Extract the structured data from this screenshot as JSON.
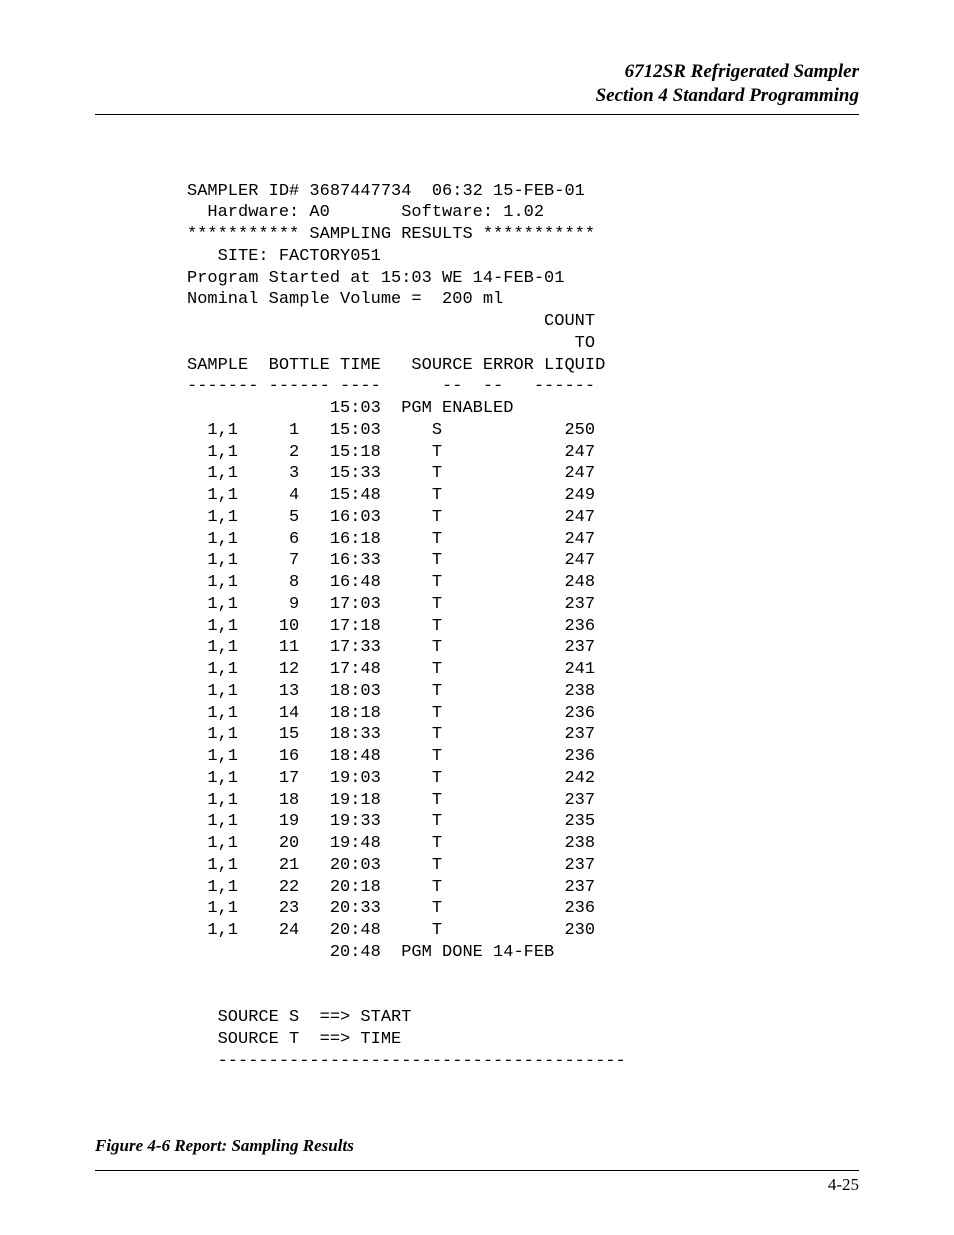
{
  "header": {
    "line1": "6712SR Refrigerated Sampler",
    "line2": "Section 4  Standard Programming"
  },
  "report": {
    "sampler_id_line": "SAMPLER ID# 3687447734  06:32 15-FEB-01",
    "hw_sw_line": "  Hardware: A0       Software: 1.02",
    "banner": "*********** SAMPLING RESULTS ***********",
    "site_line": "   SITE: FACTORY051",
    "prog_start": "Program Started at 15:03 WE 14-FEB-01",
    "nominal": "Nominal Sample Volume =  200 ml",
    "col_count": "                                   COUNT",
    "col_to": "                                      TO",
    "col_head": "SAMPLE  BOTTLE TIME   SOURCE ERROR LIQUID",
    "col_rule": "------- ------ ----      --  --   ------",
    "pgm_enabled": "              15:03  PGM ENABLED",
    "rows": [
      "  1,1     1   15:03     S            250",
      "  1,1     2   15:18     T            247",
      "  1,1     3   15:33     T            247",
      "  1,1     4   15:48     T            249",
      "  1,1     5   16:03     T            247",
      "  1,1     6   16:18     T            247",
      "  1,1     7   16:33     T            247",
      "  1,1     8   16:48     T            248",
      "  1,1     9   17:03     T            237",
      "  1,1    10   17:18     T            236",
      "  1,1    11   17:33     T            237",
      "  1,1    12   17:48     T            241",
      "  1,1    13   18:03     T            238",
      "  1,1    14   18:18     T            236",
      "  1,1    15   18:33     T            237",
      "  1,1    16   18:48     T            236",
      "  1,1    17   19:03     T            242",
      "  1,1    18   19:18     T            237",
      "  1,1    19   19:33     T            235",
      "  1,1    20   19:48     T            238",
      "  1,1    21   20:03     T            237",
      "  1,1    22   20:18     T            237",
      "  1,1    23   20:33     T            236",
      "  1,1    24   20:48     T            230"
    ],
    "pgm_done": "              20:48  PGM DONE 14-FEB",
    "legend_s": "   SOURCE S  ==> START",
    "legend_t": "   SOURCE T  ==> TIME",
    "legend_rule": "   ----------------------------------------"
  },
  "caption": "Figure 4-6  Report: Sampling Results",
  "page_number": "4-25"
}
